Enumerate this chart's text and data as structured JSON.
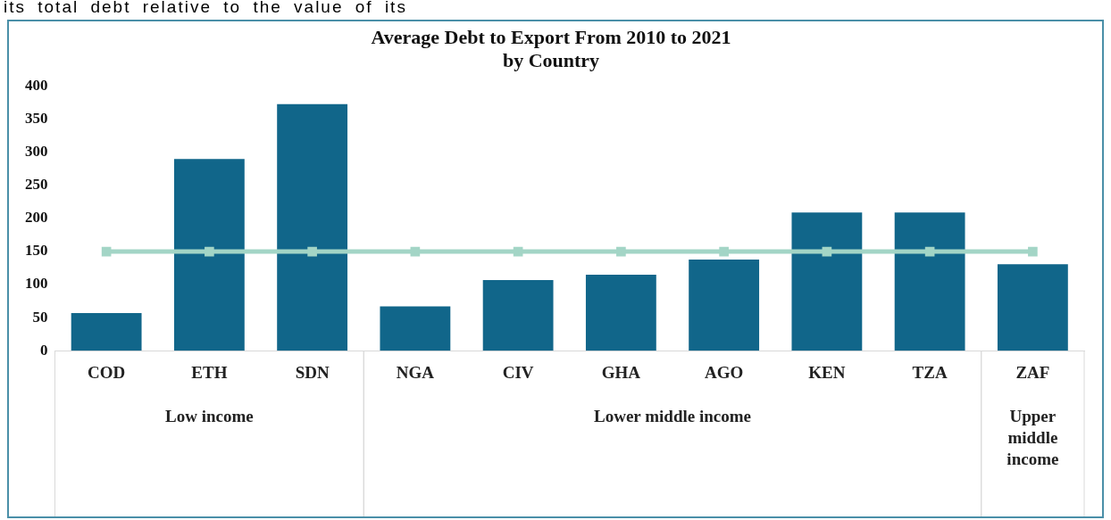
{
  "chart_data": {
    "type": "bar",
    "title": "Average Debt to Export From 2010 to 2021\nby Country",
    "categories": [
      "COD",
      "ETH",
      "SDN",
      "NGA",
      "CIV",
      "GHA",
      "AGO",
      "KEN",
      "TZA",
      "ZAF"
    ],
    "series": [
      {
        "color": "#11668a",
        "values": [
          57,
          290,
          373,
          67,
          107,
          115,
          138,
          209,
          209,
          131
        ]
      },
      {
        "type": "line",
        "color": "#a3d5c6",
        "marker": "square",
        "values": [
          150,
          150,
          150,
          150,
          150,
          150,
          150,
          150,
          150,
          150
        ]
      }
    ],
    "ylim": [
      0,
      400
    ],
    "yticks": [
      0,
      50,
      100,
      150,
      200,
      250,
      300,
      350,
      400
    ],
    "grid": false,
    "legend": false,
    "annotations": [
      "its total debt relative to the value of its",
      "Low income",
      "Lower middle income",
      "Upper middle income"
    ]
  }
}
